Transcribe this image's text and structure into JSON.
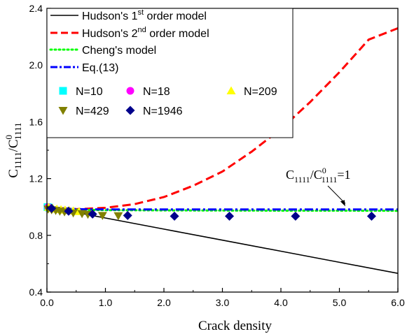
{
  "chart_data": {
    "type": "line",
    "xlabel": "Crack density",
    "ylabel": {
      "main": "C",
      "sub1": "1111",
      "main2": "/C",
      "sup2": "0",
      "sub2": "1111"
    },
    "xlim": [
      0,
      6
    ],
    "ylim": [
      0.4,
      2.4
    ],
    "xticks": [
      "0.0",
      "1.0",
      "2.0",
      "3.0",
      "4.0",
      "5.0",
      "6.0"
    ],
    "xtick_values": [
      0,
      1,
      2,
      3,
      4,
      5,
      6
    ],
    "yticks": [
      "0.4",
      "0.8",
      "1.2",
      "1.6",
      "2.0",
      "2.4"
    ],
    "ytick_values": [
      0.4,
      0.8,
      1.2,
      1.6,
      2.0,
      2.4
    ],
    "grid": false,
    "legend_position": "top-left",
    "annotation": {
      "main": "C",
      "sub1": "1111",
      "main2": "/C",
      "sup2": "0",
      "sub2": "1111",
      "tail": "=1",
      "x": 5.1,
      "y": 0.995
    },
    "series": [
      {
        "key": "h1",
        "type": "line",
        "label": {
          "pre": "Hudson's 1",
          "sup": "st",
          "post": "  order model"
        },
        "color": "#000000",
        "dash": "none",
        "width": 1.6,
        "x": [
          0.0,
          1.0,
          2.0,
          3.0,
          4.0,
          5.0,
          6.0
        ],
        "y": [
          1.0,
          0.922,
          0.844,
          0.766,
          0.688,
          0.61,
          0.532
        ]
      },
      {
        "key": "h2",
        "type": "line",
        "label": {
          "pre": "Hudson's 2",
          "sup": "nd",
          "post": " order model"
        },
        "color": "#ff0000",
        "dash": "12,6",
        "width": 3,
        "x": [
          0.0,
          0.5,
          1.0,
          1.5,
          2.0,
          2.5,
          3.0,
          3.5,
          4.0,
          4.5,
          5.0,
          5.5,
          6.0
        ],
        "y": [
          1.0,
          0.984,
          0.994,
          1.02,
          1.07,
          1.15,
          1.25,
          1.39,
          1.55,
          1.74,
          1.95,
          2.18,
          2.26
        ]
      },
      {
        "key": "cheng",
        "type": "line",
        "label": {
          "pre": "Cheng's model",
          "sup": "",
          "post": ""
        },
        "color": "#00ff00",
        "dash": "2,4",
        "width": 3,
        "x": [
          0.0,
          0.5,
          1.0,
          2.0,
          3.0,
          4.0,
          5.0,
          6.0
        ],
        "y": [
          1.0,
          0.98,
          0.978,
          0.976,
          0.975,
          0.974,
          0.974,
          0.973
        ]
      },
      {
        "key": "eq13",
        "type": "line",
        "label": {
          "pre": "Eq.(13)",
          "sup": "",
          "post": ""
        },
        "color": "#0000ff",
        "dash": "12,4,3,4",
        "width": 3,
        "x": [
          0.0,
          0.5,
          1.0,
          2.0,
          3.0,
          4.0,
          5.0,
          6.0
        ],
        "y": [
          1.0,
          0.984,
          0.983,
          0.983,
          0.983,
          0.983,
          0.983,
          0.983
        ]
      },
      {
        "key": "n10",
        "type": "scatter",
        "marker": "square",
        "label": {
          "pre": "N=10",
          "sup": "",
          "post": ""
        },
        "color": "#00ffff",
        "x": [
          0.01,
          0.04
        ],
        "y": [
          0.999,
          0.995
        ]
      },
      {
        "key": "n18",
        "type": "scatter",
        "marker": "circle",
        "label": {
          "pre": "N=18",
          "sup": "",
          "post": ""
        },
        "color": "#ff00ff",
        "x": [
          0.02,
          0.06
        ],
        "y": [
          0.998,
          0.992
        ]
      },
      {
        "key": "n209",
        "type": "scatter",
        "marker": "triangle-up",
        "label": {
          "pre": "N=209",
          "sup": "",
          "post": ""
        },
        "color": "#ffff00",
        "x": [
          0.03,
          0.1,
          0.17,
          0.24,
          0.31,
          0.38,
          0.45,
          0.55
        ],
        "y": [
          0.997,
          0.99,
          0.985,
          0.981,
          0.978,
          0.975,
          0.972,
          0.968
        ]
      },
      {
        "key": "n429",
        "type": "scatter",
        "marker": "triangle-down",
        "label": {
          "pre": "N=429",
          "sup": "",
          "post": ""
        },
        "color": "#808000",
        "x": [
          0.02,
          0.08,
          0.15,
          0.22,
          0.3,
          0.45,
          0.6,
          0.7,
          0.95,
          1.22
        ],
        "y": [
          0.985,
          0.98,
          0.975,
          0.97,
          0.965,
          0.958,
          0.953,
          0.948,
          0.94,
          0.938
        ]
      },
      {
        "key": "n1946",
        "type": "scatter",
        "marker": "diamond",
        "label": {
          "pre": "N=1946",
          "sup": "",
          "post": ""
        },
        "color": "#00008b",
        "x": [
          0.08,
          0.37,
          0.78,
          1.38,
          2.18,
          3.12,
          4.25,
          5.55
        ],
        "y": [
          0.99,
          0.97,
          0.95,
          0.94,
          0.935,
          0.935,
          0.935,
          0.935
        ]
      }
    ]
  }
}
